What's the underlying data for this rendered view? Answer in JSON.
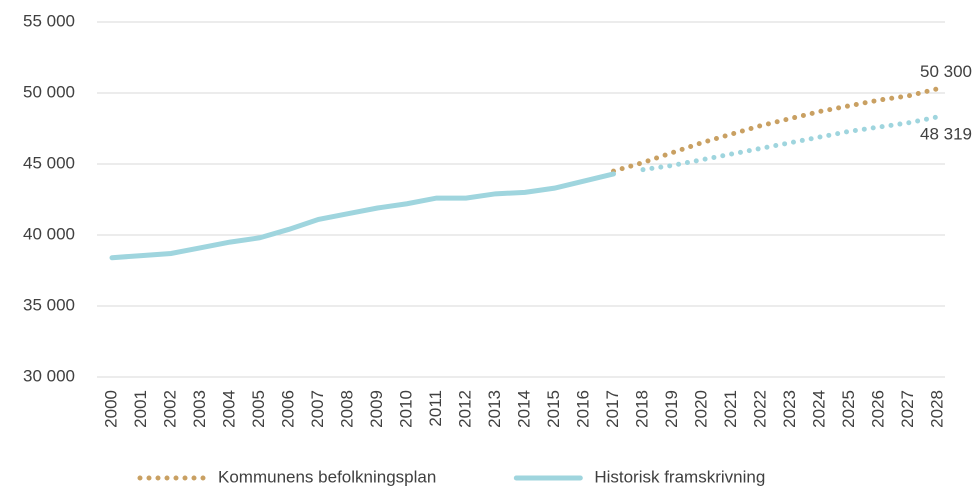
{
  "chart_data": {
    "type": "line",
    "categories": [
      "2000",
      "2001",
      "2002",
      "2003",
      "2004",
      "2005",
      "2006",
      "2007",
      "2008",
      "2009",
      "2010",
      "2011",
      "2012",
      "2013",
      "2014",
      "2015",
      "2016",
      "2017",
      "2018",
      "2019",
      "2020",
      "2021",
      "2022",
      "2023",
      "2024",
      "2025",
      "2026",
      "2027",
      "2028"
    ],
    "series": [
      {
        "name": "Kommunens befolkningsplan",
        "color": "#c9a062",
        "style": "dotted",
        "values": [
          null,
          null,
          null,
          null,
          null,
          null,
          null,
          null,
          null,
          null,
          null,
          null,
          null,
          null,
          null,
          null,
          null,
          44500,
          45100,
          45800,
          46500,
          47100,
          47700,
          48200,
          48700,
          49100,
          49500,
          49800,
          50300
        ],
        "value_labels": [
          null,
          null,
          null,
          null,
          null,
          null,
          null,
          null,
          null,
          null,
          null,
          null,
          null,
          null,
          null,
          null,
          null,
          null,
          null,
          null,
          null,
          null,
          null,
          null,
          null,
          null,
          null,
          null,
          "50 300"
        ]
      },
      {
        "name": "Historisk framskrivning",
        "color": "#9fd5de",
        "style": "solid",
        "values": [
          38400,
          38550,
          38700,
          39100,
          39500,
          39800,
          40400,
          41100,
          41500,
          41900,
          42200,
          42600,
          42600,
          42900,
          43000,
          43300,
          43800,
          44300,
          null,
          null,
          null,
          null,
          null,
          null,
          null,
          null,
          null,
          null,
          null
        ]
      },
      {
        "color": "#9fd5de",
        "style": "dotted",
        "values": [
          null,
          null,
          null,
          null,
          null,
          null,
          null,
          null,
          null,
          null,
          null,
          null,
          null,
          null,
          null,
          null,
          null,
          null,
          44600,
          44900,
          45300,
          45700,
          46100,
          46500,
          46900,
          47300,
          47600,
          47900,
          48319
        ],
        "value_labels": [
          null,
          null,
          null,
          null,
          null,
          null,
          null,
          null,
          null,
          null,
          null,
          null,
          null,
          null,
          null,
          null,
          null,
          null,
          null,
          null,
          null,
          null,
          null,
          null,
          null,
          null,
          null,
          null,
          "48 319"
        ]
      }
    ],
    "ylim": [
      30000,
      55000
    ],
    "yticks": [
      {
        "value": 30000,
        "label": "30 000"
      },
      {
        "value": 35000,
        "label": "35 000"
      },
      {
        "value": 40000,
        "label": "40 000"
      },
      {
        "value": 45000,
        "label": "45 000"
      },
      {
        "value": 50000,
        "label": "50 000"
      },
      {
        "value": 55000,
        "label": "55 000"
      }
    ],
    "grid": true,
    "legend": "bottom"
  }
}
